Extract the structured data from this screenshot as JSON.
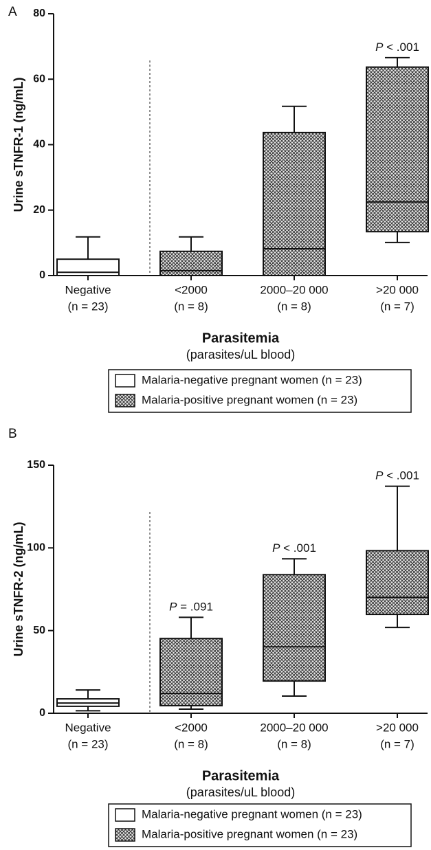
{
  "chart_data": [
    {
      "type": "box",
      "panel_label": "A",
      "ylabel": "Urine sTNFR-1 (ng/mL)",
      "xlabel": "Parasitemia",
      "xlabel_sub": "(parasites/uL blood)",
      "categories": [
        "Negative",
        "<2000",
        "2000–20 000",
        ">20 000"
      ],
      "category_notes": [
        "(n = 23)",
        "(n = 8)",
        "(n = 8)",
        "(n = 7)"
      ],
      "p_labels": [
        null,
        null,
        null,
        "P < .001"
      ],
      "ylim": [
        0,
        80
      ],
      "yticks": [
        0,
        20,
        40,
        60,
        80
      ],
      "series": [
        {
          "name": "Malaria-negative pregnant women (n = 23)",
          "style": "plain",
          "boxes": [
            {
              "min": 0,
              "q1": 0,
              "median": 1,
              "q3": 5,
              "max": 11.8
            },
            null,
            null,
            null
          ]
        },
        {
          "name": "Malaria-positive pregnant women (n = 23)",
          "style": "hatched",
          "boxes": [
            null,
            {
              "min": 0,
              "q1": 0,
              "median": 1.5,
              "q3": 7.4,
              "max": 11.8
            },
            {
              "min": 0,
              "q1": 0,
              "median": 8.2,
              "q3": 43.7,
              "max": 51.7
            },
            {
              "min": 10.1,
              "q1": 13.4,
              "median": 22.5,
              "q3": 63.7,
              "max": 66.6
            }
          ]
        }
      ]
    },
    {
      "type": "box",
      "panel_label": "B",
      "ylabel": "Urine sTNFR-2 (ng/mL)",
      "xlabel": "Parasitemia",
      "xlabel_sub": "(parasites/uL blood)",
      "categories": [
        "Negative",
        "<2000",
        "2000–20 000",
        ">20 000"
      ],
      "category_notes": [
        "(n = 23)",
        "(n = 8)",
        "(n = 8)",
        "(n = 7)"
      ],
      "p_labels": [
        null,
        "P = .091",
        "P < .001",
        "P < .001"
      ],
      "ylim": [
        0,
        150
      ],
      "yticks": [
        0,
        50,
        100,
        150
      ],
      "series": [
        {
          "name": "Malaria-negative pregnant women (n = 23)",
          "style": "plain",
          "boxes": [
            {
              "min": 1.5,
              "q1": 4.2,
              "median": 6.2,
              "q3": 8.7,
              "max": 14.1
            },
            null,
            null,
            null
          ]
        },
        {
          "name": "Malaria-positive pregnant women (n = 23)",
          "style": "hatched",
          "boxes": [
            null,
            {
              "min": 2.5,
              "q1": 4.6,
              "median": 12,
              "q3": 45.2,
              "max": 58
            },
            {
              "min": 10.4,
              "q1": 19.5,
              "median": 40.2,
              "q3": 83.8,
              "max": 93.4
            },
            {
              "min": 51.9,
              "q1": 59.8,
              "median": 70.1,
              "q3": 98.3,
              "max": 137.3
            }
          ]
        }
      ]
    }
  ]
}
